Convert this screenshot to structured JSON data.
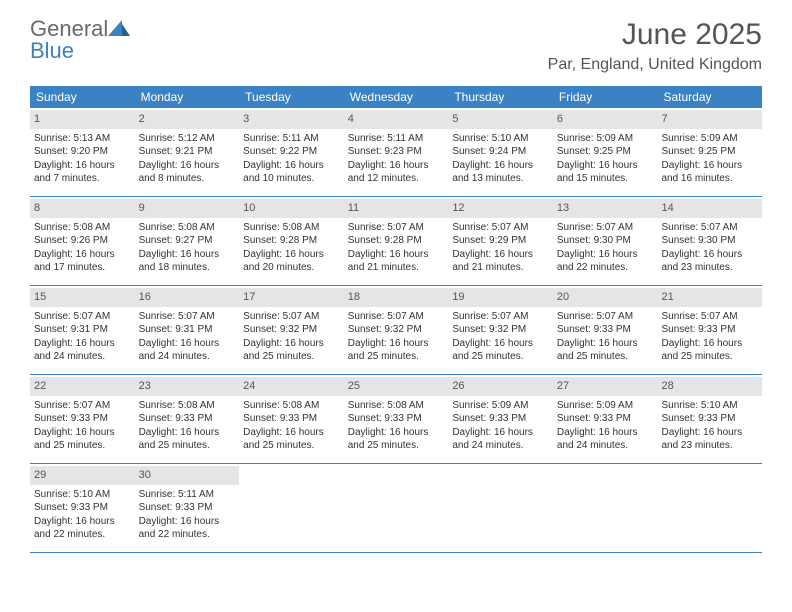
{
  "logo": {
    "word1": "General",
    "word2": "Blue"
  },
  "title": "June 2025",
  "location": "Par, England, United Kingdom",
  "colors": {
    "header_bg": "#3b82c4",
    "daynum_bg": "#e3e5e7",
    "text": "#333333",
    "title": "#555555"
  },
  "dow": [
    "Sunday",
    "Monday",
    "Tuesday",
    "Wednesday",
    "Thursday",
    "Friday",
    "Saturday"
  ],
  "weeks": [
    [
      {
        "n": "1",
        "sr": "Sunrise: 5:13 AM",
        "ss": "Sunset: 9:20 PM",
        "d1": "Daylight: 16 hours",
        "d2": "and 7 minutes."
      },
      {
        "n": "2",
        "sr": "Sunrise: 5:12 AM",
        "ss": "Sunset: 9:21 PM",
        "d1": "Daylight: 16 hours",
        "d2": "and 8 minutes."
      },
      {
        "n": "3",
        "sr": "Sunrise: 5:11 AM",
        "ss": "Sunset: 9:22 PM",
        "d1": "Daylight: 16 hours",
        "d2": "and 10 minutes."
      },
      {
        "n": "4",
        "sr": "Sunrise: 5:11 AM",
        "ss": "Sunset: 9:23 PM",
        "d1": "Daylight: 16 hours",
        "d2": "and 12 minutes."
      },
      {
        "n": "5",
        "sr": "Sunrise: 5:10 AM",
        "ss": "Sunset: 9:24 PM",
        "d1": "Daylight: 16 hours",
        "d2": "and 13 minutes."
      },
      {
        "n": "6",
        "sr": "Sunrise: 5:09 AM",
        "ss": "Sunset: 9:25 PM",
        "d1": "Daylight: 16 hours",
        "d2": "and 15 minutes."
      },
      {
        "n": "7",
        "sr": "Sunrise: 5:09 AM",
        "ss": "Sunset: 9:25 PM",
        "d1": "Daylight: 16 hours",
        "d2": "and 16 minutes."
      }
    ],
    [
      {
        "n": "8",
        "sr": "Sunrise: 5:08 AM",
        "ss": "Sunset: 9:26 PM",
        "d1": "Daylight: 16 hours",
        "d2": "and 17 minutes."
      },
      {
        "n": "9",
        "sr": "Sunrise: 5:08 AM",
        "ss": "Sunset: 9:27 PM",
        "d1": "Daylight: 16 hours",
        "d2": "and 18 minutes."
      },
      {
        "n": "10",
        "sr": "Sunrise: 5:08 AM",
        "ss": "Sunset: 9:28 PM",
        "d1": "Daylight: 16 hours",
        "d2": "and 20 minutes."
      },
      {
        "n": "11",
        "sr": "Sunrise: 5:07 AM",
        "ss": "Sunset: 9:28 PM",
        "d1": "Daylight: 16 hours",
        "d2": "and 21 minutes."
      },
      {
        "n": "12",
        "sr": "Sunrise: 5:07 AM",
        "ss": "Sunset: 9:29 PM",
        "d1": "Daylight: 16 hours",
        "d2": "and 21 minutes."
      },
      {
        "n": "13",
        "sr": "Sunrise: 5:07 AM",
        "ss": "Sunset: 9:30 PM",
        "d1": "Daylight: 16 hours",
        "d2": "and 22 minutes."
      },
      {
        "n": "14",
        "sr": "Sunrise: 5:07 AM",
        "ss": "Sunset: 9:30 PM",
        "d1": "Daylight: 16 hours",
        "d2": "and 23 minutes."
      }
    ],
    [
      {
        "n": "15",
        "sr": "Sunrise: 5:07 AM",
        "ss": "Sunset: 9:31 PM",
        "d1": "Daylight: 16 hours",
        "d2": "and 24 minutes."
      },
      {
        "n": "16",
        "sr": "Sunrise: 5:07 AM",
        "ss": "Sunset: 9:31 PM",
        "d1": "Daylight: 16 hours",
        "d2": "and 24 minutes."
      },
      {
        "n": "17",
        "sr": "Sunrise: 5:07 AM",
        "ss": "Sunset: 9:32 PM",
        "d1": "Daylight: 16 hours",
        "d2": "and 25 minutes."
      },
      {
        "n": "18",
        "sr": "Sunrise: 5:07 AM",
        "ss": "Sunset: 9:32 PM",
        "d1": "Daylight: 16 hours",
        "d2": "and 25 minutes."
      },
      {
        "n": "19",
        "sr": "Sunrise: 5:07 AM",
        "ss": "Sunset: 9:32 PM",
        "d1": "Daylight: 16 hours",
        "d2": "and 25 minutes."
      },
      {
        "n": "20",
        "sr": "Sunrise: 5:07 AM",
        "ss": "Sunset: 9:33 PM",
        "d1": "Daylight: 16 hours",
        "d2": "and 25 minutes."
      },
      {
        "n": "21",
        "sr": "Sunrise: 5:07 AM",
        "ss": "Sunset: 9:33 PM",
        "d1": "Daylight: 16 hours",
        "d2": "and 25 minutes."
      }
    ],
    [
      {
        "n": "22",
        "sr": "Sunrise: 5:07 AM",
        "ss": "Sunset: 9:33 PM",
        "d1": "Daylight: 16 hours",
        "d2": "and 25 minutes."
      },
      {
        "n": "23",
        "sr": "Sunrise: 5:08 AM",
        "ss": "Sunset: 9:33 PM",
        "d1": "Daylight: 16 hours",
        "d2": "and 25 minutes."
      },
      {
        "n": "24",
        "sr": "Sunrise: 5:08 AM",
        "ss": "Sunset: 9:33 PM",
        "d1": "Daylight: 16 hours",
        "d2": "and 25 minutes."
      },
      {
        "n": "25",
        "sr": "Sunrise: 5:08 AM",
        "ss": "Sunset: 9:33 PM",
        "d1": "Daylight: 16 hours",
        "d2": "and 25 minutes."
      },
      {
        "n": "26",
        "sr": "Sunrise: 5:09 AM",
        "ss": "Sunset: 9:33 PM",
        "d1": "Daylight: 16 hours",
        "d2": "and 24 minutes."
      },
      {
        "n": "27",
        "sr": "Sunrise: 5:09 AM",
        "ss": "Sunset: 9:33 PM",
        "d1": "Daylight: 16 hours",
        "d2": "and 24 minutes."
      },
      {
        "n": "28",
        "sr": "Sunrise: 5:10 AM",
        "ss": "Sunset: 9:33 PM",
        "d1": "Daylight: 16 hours",
        "d2": "and 23 minutes."
      }
    ],
    [
      {
        "n": "29",
        "sr": "Sunrise: 5:10 AM",
        "ss": "Sunset: 9:33 PM",
        "d1": "Daylight: 16 hours",
        "d2": "and 22 minutes."
      },
      {
        "n": "30",
        "sr": "Sunrise: 5:11 AM",
        "ss": "Sunset: 9:33 PM",
        "d1": "Daylight: 16 hours",
        "d2": "and 22 minutes."
      },
      {
        "empty": true
      },
      {
        "empty": true
      },
      {
        "empty": true
      },
      {
        "empty": true
      },
      {
        "empty": true
      }
    ]
  ]
}
